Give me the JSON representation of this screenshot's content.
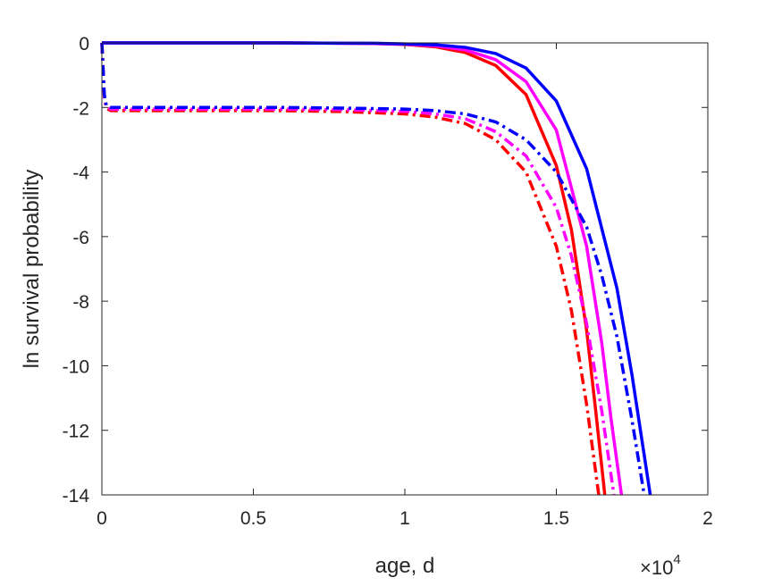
{
  "chart_data": {
    "type": "line",
    "xlabel": "age, d",
    "ylabel": "ln survival probability",
    "x_exponent_label": {
      "base": "×10",
      "exponent": "4"
    },
    "xlim": [
      0,
      20000
    ],
    "ylim": [
      -14,
      0
    ],
    "xticks": [
      0,
      5000,
      10000,
      15000,
      20000
    ],
    "xtick_labels": [
      "0",
      "0.5",
      "1",
      "1.5",
      "2"
    ],
    "yticks": [
      0,
      -2,
      -4,
      -6,
      -8,
      -10,
      -12,
      -14
    ],
    "ytick_labels": [
      "0",
      "-2",
      "-4",
      "-6",
      "-8",
      "-10",
      "-12",
      "-14"
    ],
    "grid": false,
    "series": [
      {
        "style": "solid",
        "color": "#ff0000",
        "x": [
          0,
          2000,
          4000,
          6000,
          8000,
          9000,
          10000,
          11000,
          12000,
          13000,
          14000,
          15000,
          15500,
          16000,
          16300,
          16600
        ],
        "y": [
          0,
          0,
          0,
          0,
          -0.01,
          -0.02,
          -0.05,
          -0.12,
          -0.3,
          -0.7,
          -1.6,
          -3.8,
          -5.8,
          -8.9,
          -11.4,
          -14
        ]
      },
      {
        "style": "solid",
        "color": "#ff00ff",
        "x": [
          0,
          2000,
          4000,
          6000,
          8000,
          9000,
          10000,
          11000,
          12000,
          13000,
          14000,
          15000,
          16000,
          16500,
          16800,
          17150
        ],
        "y": [
          0,
          0,
          0,
          0,
          -0.01,
          -0.02,
          -0.04,
          -0.09,
          -0.22,
          -0.52,
          -1.2,
          -2.7,
          -6.3,
          -9.3,
          -11.6,
          -14
        ]
      },
      {
        "style": "solid",
        "color": "#0000ff",
        "x": [
          0,
          2000,
          4000,
          6000,
          8000,
          9000,
          10000,
          11000,
          12000,
          13000,
          14000,
          15000,
          16000,
          17000,
          17500,
          18100
        ],
        "y": [
          0,
          0,
          0,
          0,
          -0.01,
          -0.01,
          -0.03,
          -0.06,
          -0.14,
          -0.33,
          -0.78,
          -1.8,
          -3.9,
          -7.6,
          -10.3,
          -14
        ]
      },
      {
        "style": "dashdot",
        "color": "#ff0000",
        "x": [
          0,
          40,
          80,
          150,
          300,
          2000,
          4000,
          6000,
          8000,
          10000,
          11000,
          12000,
          13000,
          14000,
          15000,
          15500,
          16000,
          16400
        ],
        "y": [
          0,
          -0.8,
          -1.7,
          -2.03,
          -2.1,
          -2.1,
          -2.1,
          -2.1,
          -2.13,
          -2.2,
          -2.3,
          -2.5,
          -3.0,
          -4.0,
          -6.3,
          -8.3,
          -11.2,
          -14
        ]
      },
      {
        "style": "dashdot",
        "color": "#ff00ff",
        "x": [
          0,
          40,
          80,
          150,
          300,
          2000,
          4000,
          6000,
          8000,
          10000,
          11000,
          12000,
          13000,
          14000,
          15000,
          15500,
          16000,
          16500,
          16900
        ],
        "y": [
          0,
          -0.8,
          -1.65,
          -2.0,
          -2.05,
          -2.05,
          -2.05,
          -2.05,
          -2.07,
          -2.12,
          -2.2,
          -2.35,
          -2.75,
          -3.5,
          -5.1,
          -6.6,
          -8.7,
          -11.4,
          -14
        ]
      },
      {
        "style": "dashdot",
        "color": "#0000ff",
        "x": [
          0,
          40,
          80,
          150,
          300,
          2000,
          4000,
          6000,
          8000,
          10000,
          11000,
          12000,
          13000,
          14000,
          15000,
          16000,
          16500,
          17000,
          17500,
          17900
        ],
        "y": [
          0,
          -0.8,
          -1.6,
          -1.95,
          -2.0,
          -2.0,
          -2.0,
          -2.0,
          -2.02,
          -2.05,
          -2.1,
          -2.2,
          -2.45,
          -3.0,
          -4.0,
          -5.7,
          -7.2,
          -9.1,
          -11.7,
          -14
        ]
      }
    ]
  }
}
